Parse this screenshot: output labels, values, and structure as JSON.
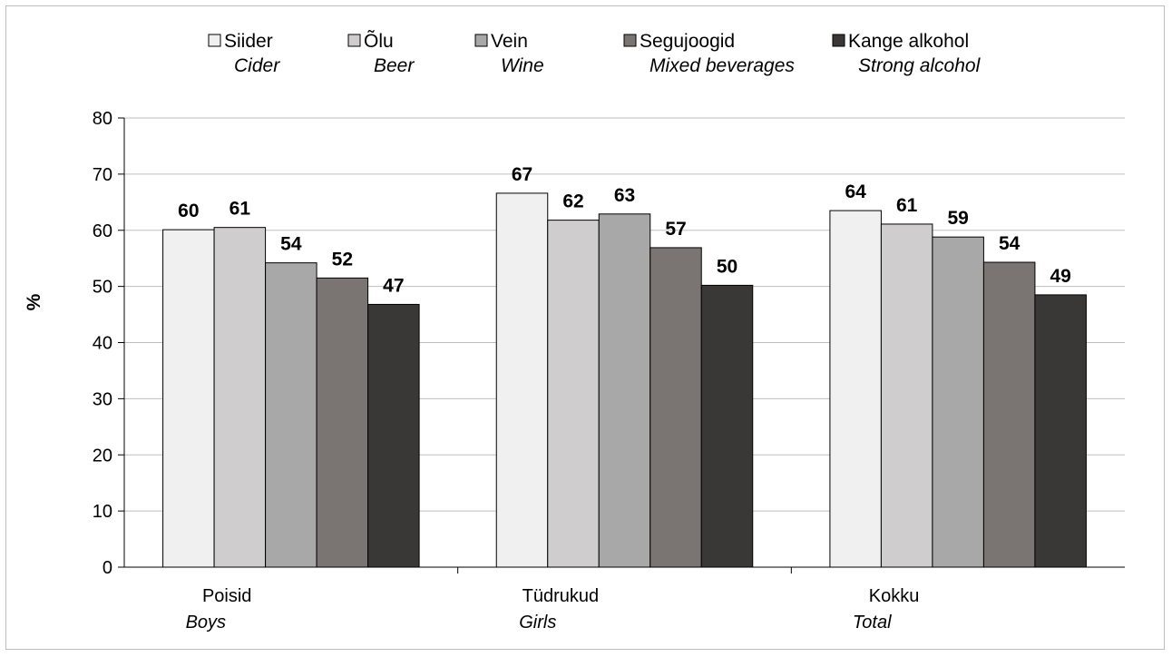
{
  "chart_data": {
    "type": "bar",
    "ylabel": "%",
    "ylim": [
      0,
      80
    ],
    "yticks": [
      0,
      10,
      20,
      30,
      40,
      50,
      60,
      70,
      80
    ],
    "grid": true,
    "legend_position": "top",
    "categories": [
      {
        "name": "Poisid",
        "translation": "Boys"
      },
      {
        "name": "Tüdrukud",
        "translation": "Girls"
      },
      {
        "name": "Kokku",
        "translation": "Total"
      }
    ],
    "series": [
      {
        "name": "Siider",
        "translation": "Cider",
        "color": "#f0f0f0",
        "values": [
          60,
          67,
          64
        ],
        "raw": [
          60.1,
          66.6,
          63.5
        ]
      },
      {
        "name": "Õlu",
        "translation": "Beer",
        "color": "#cfcdcd",
        "values": [
          61,
          62,
          61
        ],
        "raw": [
          60.5,
          61.8,
          61.1
        ]
      },
      {
        "name": "Vein",
        "translation": "Wine",
        "color": "#a8a8a8",
        "values": [
          54,
          63,
          59
        ],
        "raw": [
          54.2,
          62.9,
          58.8
        ]
      },
      {
        "name": "Segujoogid",
        "translation": "Mixed beverages",
        "color": "#7a7473",
        "values": [
          52,
          57,
          54
        ],
        "raw": [
          51.5,
          56.9,
          54.3
        ]
      },
      {
        "name": "Kange alkohol",
        "translation": "Strong alcohol",
        "color": "#3a3836",
        "values": [
          47,
          50,
          49
        ],
        "raw": [
          46.8,
          50.2,
          48.5
        ]
      }
    ]
  }
}
